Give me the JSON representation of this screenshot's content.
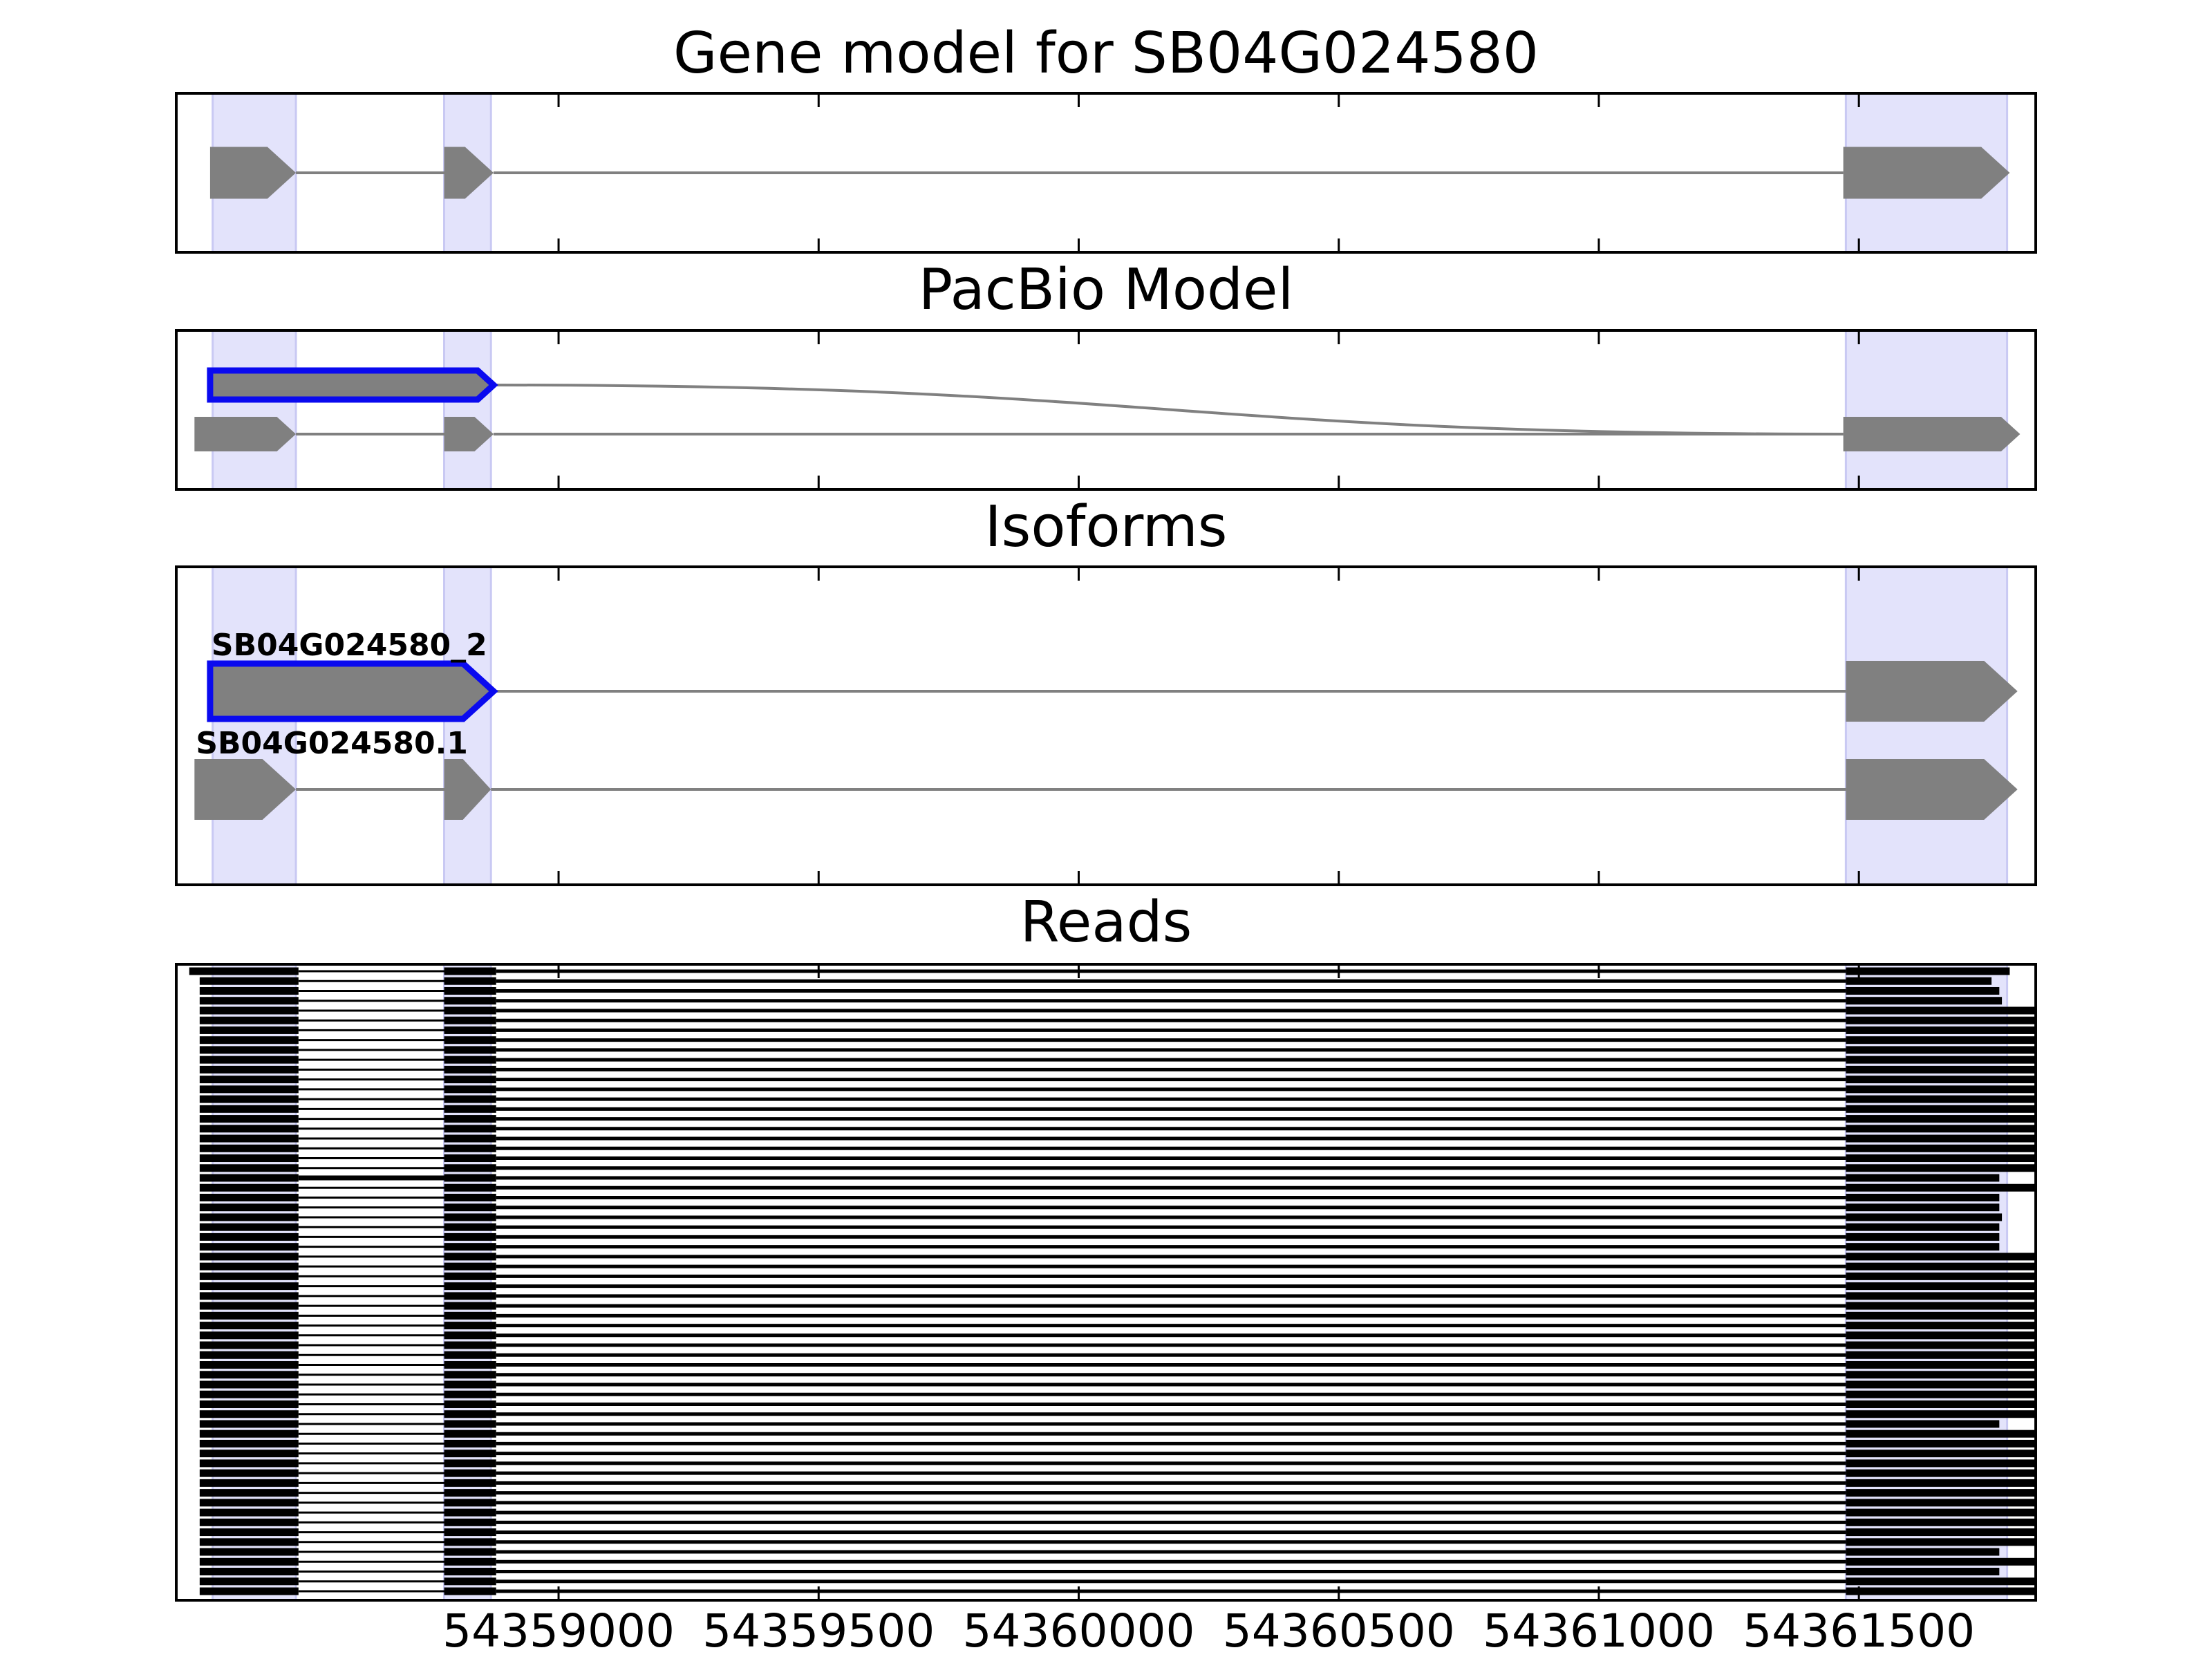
{
  "figure": {
    "panels": [
      {
        "id": "gene",
        "title": "Gene model for SB04G024580"
      },
      {
        "id": "pacbio",
        "title": "PacBio Model"
      },
      {
        "id": "isoforms",
        "title": "Isoforms"
      },
      {
        "id": "reads",
        "title": "Reads"
      }
    ]
  },
  "chart_data": {
    "type": "gene-structure",
    "xlim": [
      54358265,
      54361840
    ],
    "x_ticks": [
      54359000,
      54359500,
      54360000,
      54360500,
      54361000,
      54361500
    ],
    "x_tick_labels": [
      "54359000",
      "54359500",
      "54360000",
      "54360500",
      "54361000",
      "54361500"
    ],
    "exon_highlights": [
      [
        54358335,
        54358495
      ],
      [
        54358780,
        54358870
      ],
      [
        54361475,
        54361785
      ]
    ],
    "highlight_color": "#e3e3fb",
    "gene_model": {
      "exons": [
        [
          54358330,
          54358495
        ],
        [
          54358780,
          54358875
        ],
        [
          54361470,
          54361790
        ]
      ],
      "color": "#808080"
    },
    "pacbio_model": {
      "highlighted": {
        "exons": [
          [
            54358330,
            54358875
          ]
        ],
        "joins_to": 54361470,
        "color": "#0a0aef"
      },
      "reference": {
        "exons": [
          [
            54358300,
            54358495
          ],
          [
            54358780,
            54358875
          ],
          [
            54361470,
            54361810
          ]
        ]
      }
    },
    "isoforms": [
      {
        "name": "SB04G024580_2",
        "exons": [
          [
            54358330,
            54358875
          ],
          [
            54361475,
            54361805
          ]
        ],
        "highlighted": true,
        "outline_color": "#0a0aef"
      },
      {
        "name": "SB04G024580.1",
        "exons": [
          [
            54358300,
            54358495
          ],
          [
            54358780,
            54358870
          ],
          [
            54361475,
            54361805
          ]
        ],
        "highlighted": false
      }
    ],
    "reads": {
      "count": 64,
      "exon1": [
        54358310,
        54358500
      ],
      "exon2": [
        54358780,
        54358880
      ],
      "exon3_start": 54361475,
      "exon3_ends": [
        54361790,
        54361755,
        54361770,
        54361775,
        54361840,
        54361840,
        54361840,
        54361840,
        54361840,
        54361840,
        54361840,
        54361840,
        54361840,
        54361840,
        54361840,
        54361840,
        54361840,
        54361840,
        54361840,
        54361840,
        54361840,
        54361770,
        54361840,
        54361770,
        54361770,
        54361775,
        54361770,
        54361770,
        54361770,
        54361840,
        54361840,
        54361840,
        54361840,
        54361840,
        54361840,
        54361840,
        54361840,
        54361840,
        54361840,
        54361840,
        54361840,
        54361840,
        54361840,
        54361840,
        54361840,
        54361840,
        54361770,
        54361840,
        54361840,
        54361840,
        54361840,
        54361840,
        54361840,
        54361840,
        54361840,
        54361840,
        54361840,
        54361840,
        54361840,
        54361770,
        54361840,
        54361770,
        54361840,
        54361840
      ],
      "skip_exon2_rows": [
        21
      ]
    }
  }
}
